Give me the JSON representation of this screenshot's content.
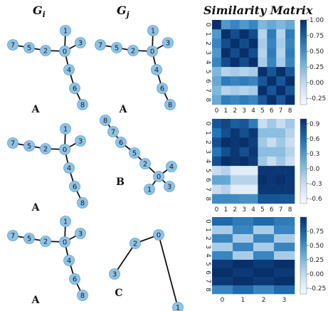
{
  "headers": {
    "gi": "G",
    "gi_sub": "i",
    "gj": "G",
    "gj_sub": "j",
    "matrix": "Similarity Matrix"
  },
  "graph_types": {
    "A": {
      "letter": "A",
      "nodes": [
        "0",
        "1",
        "2",
        "3",
        "4",
        "5",
        "6",
        "7",
        "8"
      ]
    },
    "B": {
      "letter": "B",
      "nodes": [
        "0",
        "1",
        "2",
        "3",
        "4",
        "5",
        "6",
        "7",
        "8"
      ]
    },
    "C": {
      "letter": "C",
      "nodes": [
        "0",
        "1",
        "2",
        "3"
      ]
    }
  },
  "rows": [
    {
      "left": "A",
      "right": "A"
    },
    {
      "left": "A",
      "right": "B"
    },
    {
      "left": "A",
      "right": "C"
    }
  ],
  "colors": {
    "node_fill": "#8fc3e6",
    "node_stroke": "#5d9fcf",
    "edge": "#111111",
    "cmap_low": "#f7fbff",
    "cmap_high": "#08306b"
  },
  "matrices": [
    {
      "rows": [
        "0",
        "1",
        "2",
        "3",
        "4",
        "5",
        "6",
        "7",
        "8"
      ],
      "cols": [
        "0",
        "1",
        "2",
        "3",
        "4",
        "5",
        "6",
        "7",
        "8"
      ],
      "vmin": -0.35,
      "vmax": 1.0,
      "cb_ticks": [
        "1.00",
        "0.75",
        "0.50",
        "0.25",
        "0.00",
        "-0.25"
      ],
      "cb_values": [
        1.0,
        0.75,
        0.5,
        0.25,
        0.0,
        -0.25
      ],
      "values": [
        [
          1.0,
          0.45,
          0.55,
          0.45,
          0.55,
          0.25,
          0.35,
          0.25,
          0.35
        ],
        [
          0.45,
          1.0,
          0.85,
          1.0,
          0.85,
          0.05,
          0.6,
          0.05,
          0.6
        ],
        [
          0.55,
          0.85,
          1.0,
          0.85,
          1.0,
          0.1,
          0.55,
          0.1,
          0.55
        ],
        [
          0.45,
          1.0,
          0.85,
          1.0,
          0.85,
          0.05,
          0.6,
          0.05,
          0.6
        ],
        [
          0.55,
          0.85,
          1.0,
          0.85,
          1.0,
          0.1,
          0.55,
          0.1,
          0.55
        ],
        [
          0.25,
          0.05,
          0.1,
          0.05,
          0.1,
          1.0,
          0.8,
          1.0,
          0.8
        ],
        [
          0.35,
          0.6,
          0.55,
          0.6,
          0.55,
          0.8,
          1.0,
          0.8,
          1.0
        ],
        [
          0.25,
          0.05,
          0.1,
          0.05,
          0.1,
          1.0,
          0.8,
          1.0,
          0.8
        ],
        [
          0.35,
          0.6,
          0.55,
          0.6,
          0.55,
          0.8,
          1.0,
          0.8,
          1.0
        ]
      ]
    },
    {
      "rows": [
        "0",
        "1",
        "2",
        "3",
        "4",
        "5",
        "6",
        "7",
        "8"
      ],
      "cols": [
        "0",
        "1",
        "2",
        "3",
        "4",
        "5",
        "6",
        "7",
        "8"
      ],
      "vmin": -0.7,
      "vmax": 1.0,
      "cb_ticks": [
        "0.9",
        "0.6",
        "0.3",
        "0.0",
        "-0.3",
        "-0.6"
      ],
      "cb_values": [
        0.9,
        0.6,
        0.3,
        0.0,
        -0.3,
        -0.6
      ],
      "values": [
        [
          0.75,
          0.85,
          0.7,
          0.75,
          0.5,
          -0.3,
          -0.1,
          -0.3,
          -0.1
        ],
        [
          0.55,
          0.8,
          0.95,
          0.8,
          0.95,
          0.0,
          0.0,
          0.0,
          -0.2
        ],
        [
          0.8,
          1.0,
          0.95,
          1.0,
          0.9,
          -0.1,
          -0.3,
          -0.1,
          -0.3
        ],
        [
          0.55,
          0.8,
          0.95,
          0.8,
          0.95,
          0.0,
          0.0,
          0.0,
          -0.2
        ],
        [
          0.8,
          1.0,
          0.95,
          1.0,
          0.9,
          -0.1,
          -0.3,
          -0.1,
          -0.3
        ],
        [
          -0.3,
          -0.2,
          -0.5,
          -0.5,
          -0.5,
          0.95,
          0.95,
          0.95,
          0.95
        ],
        [
          0.2,
          0.2,
          -0.2,
          -0.2,
          -0.2,
          1.0,
          0.95,
          1.0,
          0.95
        ],
        [
          -0.3,
          -0.2,
          -0.5,
          -0.5,
          -0.5,
          0.95,
          0.95,
          0.95,
          0.95
        ],
        [
          0.4,
          0.4,
          0.4,
          0.35,
          0.35,
          0.75,
          0.75,
          0.75,
          0.75
        ]
      ]
    },
    {
      "rows": [
        "0",
        "1",
        "2",
        "3",
        "4",
        "5",
        "6",
        "7",
        "8"
      ],
      "cols": [
        "0",
        "1",
        "2",
        "3"
      ],
      "vmin": -0.35,
      "vmax": 1.0,
      "cb_ticks": [
        "0.75",
        "0.50",
        "0.25",
        "0.00",
        "-0.25"
      ],
      "cb_values": [
        0.75,
        0.5,
        0.25,
        0.0,
        -0.25
      ],
      "values": [
        [
          0.7,
          0.6,
          0.7,
          0.6
        ],
        [
          0.1,
          0.55,
          0.1,
          0.55
        ],
        [
          0.55,
          0.1,
          0.55,
          0.1
        ],
        [
          0.1,
          0.55,
          0.1,
          0.55
        ],
        [
          0.55,
          0.1,
          0.55,
          0.1
        ],
        [
          0.95,
          1.0,
          0.95,
          1.0
        ],
        [
          1.0,
          0.95,
          1.0,
          0.95
        ],
        [
          0.95,
          1.0,
          0.95,
          1.0
        ],
        [
          0.55,
          0.7,
          0.55,
          0.7
        ]
      ]
    }
  ]
}
